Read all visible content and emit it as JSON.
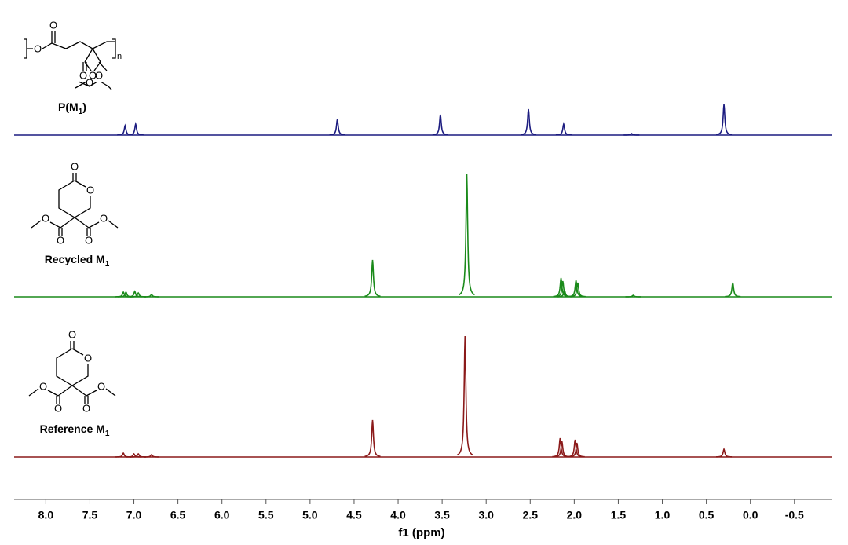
{
  "chart_data": {
    "type": "nmr",
    "xlabel": "f1 (ppm)",
    "xlim": [
      8.36,
      -0.93
    ],
    "xticks": [
      {
        "value": 8.0,
        "label": "8.0"
      },
      {
        "value": 7.5,
        "label": "7.5"
      },
      {
        "value": 7.0,
        "label": "7.0"
      },
      {
        "value": 6.5,
        "label": "6.5"
      },
      {
        "value": 6.0,
        "label": "6.0"
      },
      {
        "value": 5.5,
        "label": "5.5"
      },
      {
        "value": 5.0,
        "label": "5.0"
      },
      {
        "value": 4.5,
        "label": "4.5"
      },
      {
        "value": 4.0,
        "label": "4.0"
      },
      {
        "value": 3.5,
        "label": "3.5"
      },
      {
        "value": 3.0,
        "label": "3.0"
      },
      {
        "value": 2.5,
        "label": "2.5"
      },
      {
        "value": 2.0,
        "label": "2.0"
      },
      {
        "value": 1.5,
        "label": "1.5"
      },
      {
        "value": 1.0,
        "label": "1.0"
      },
      {
        "value": 0.5,
        "label": "0.5"
      },
      {
        "value": 0,
        "label": "0.0"
      },
      {
        "value": -0.5,
        "label": "-0.5"
      }
    ],
    "series": [
      {
        "name": "P(M",
        "name_sub": "1",
        "name_tail": ")",
        "color": "#1c1c80",
        "x": [
          7.1,
          6.98,
          4.69,
          3.52,
          2.52,
          2.12,
          1.35,
          0.3
        ],
        "values": [
          12,
          14,
          20,
          26,
          33,
          14,
          2,
          39
        ]
      },
      {
        "name": "Recycled M",
        "name_sub": "1",
        "color": "#1a8a1a",
        "x": [
          7.12,
          7.09,
          6.99,
          6.95,
          6.8,
          4.29,
          3.22,
          2.15,
          2.13,
          2.11,
          1.98,
          1.96,
          1.33,
          0.2
        ],
        "values": [
          6,
          6,
          7,
          5,
          3,
          47,
          156,
          24,
          20,
          8,
          21,
          18,
          2,
          18
        ]
      },
      {
        "name": "Reference M",
        "name_sub": "1",
        "color": "#8b1a1a",
        "x": [
          7.12,
          7.0,
          6.95,
          6.8,
          4.29,
          3.24,
          2.16,
          2.14,
          1.99,
          1.97,
          0.3
        ],
        "values": [
          5,
          4,
          4,
          3,
          47,
          154,
          24,
          20,
          22,
          18,
          10
        ]
      }
    ],
    "structures": [
      {
        "atoms": [
          "O",
          "O",
          "O",
          "O",
          "O",
          "O",
          "n"
        ]
      },
      {
        "atoms": [
          "O",
          "O",
          "O",
          "O",
          "O",
          "O"
        ]
      },
      {
        "atoms": [
          "O",
          "O",
          "O",
          "O",
          "O",
          "O"
        ]
      }
    ]
  }
}
